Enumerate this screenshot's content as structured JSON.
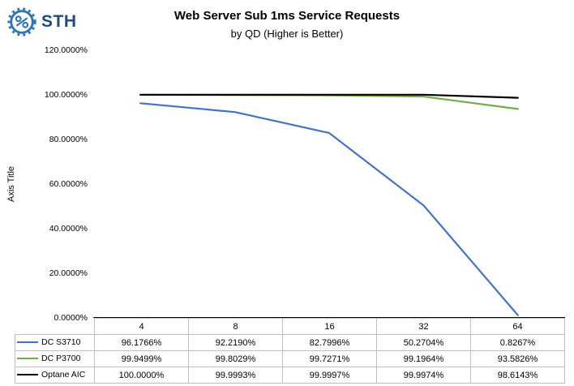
{
  "logo": {
    "text": "STH"
  },
  "chart_data": {
    "type": "line",
    "title": "Web Server Sub 1ms Service Requests",
    "subtitle": "by QD (Higher is Better)",
    "ylabel": "Axis Title",
    "categories": [
      "4",
      "8",
      "16",
      "32",
      "64"
    ],
    "series": [
      {
        "name": "DC S3710",
        "color": "#4472c4",
        "values": [
          96.1766,
          92.219,
          82.7996,
          50.2704,
          0.8267
        ],
        "labels": [
          "96.1766%",
          "92.2190%",
          "82.7996%",
          "50.2704%",
          "0.8267%"
        ]
      },
      {
        "name": "DC P3700",
        "color": "#70ad47",
        "values": [
          99.9499,
          99.8029,
          99.7271,
          99.1964,
          93.5826
        ],
        "labels": [
          "99.9499%",
          "99.8029%",
          "99.7271%",
          "99.1964%",
          "93.5826%"
        ]
      },
      {
        "name": "Optane AIC",
        "color": "#000000",
        "values": [
          100.0,
          99.9993,
          99.9997,
          99.9974,
          98.6143
        ],
        "labels": [
          "100.0000%",
          "99.9993%",
          "99.9997%",
          "99.9974%",
          "98.6143%"
        ]
      }
    ],
    "ylim": [
      0,
      120
    ],
    "yticks": [
      "0.0000%",
      "20.0000%",
      "40.0000%",
      "60.0000%",
      "80.0000%",
      "100.0000%",
      "120.0000%"
    ],
    "grid": false,
    "legend_position": "table-left"
  }
}
